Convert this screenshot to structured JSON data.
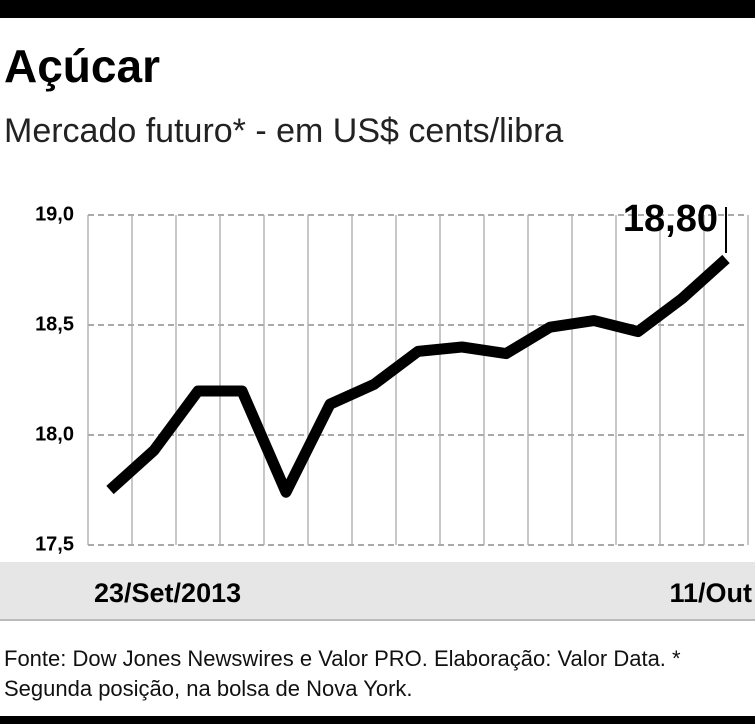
{
  "chart_data": {
    "type": "line",
    "title": "Açúcar",
    "subtitle": "Mercado futuro* - em US$ cents/libra",
    "categories": [
      "23/Set/2013",
      null,
      null,
      null,
      null,
      null,
      null,
      null,
      null,
      null,
      null,
      null,
      null,
      null,
      "11/Out"
    ],
    "series": [
      {
        "color": "#000000",
        "values": [
          17.75,
          17.93,
          18.2,
          18.2,
          17.74,
          18.14,
          18.23,
          18.38,
          18.4,
          18.37,
          18.49,
          18.52,
          18.47,
          18.62,
          18.8
        ],
        "value_labels": [
          null,
          null,
          null,
          null,
          null,
          null,
          null,
          null,
          null,
          null,
          null,
          null,
          null,
          null,
          "18,80"
        ]
      }
    ],
    "ylim": [
      17.5,
      19.0
    ],
    "yticks": [
      {
        "value": 17.5,
        "label": "17,5"
      },
      {
        "value": 18.0,
        "label": "18,0"
      },
      {
        "value": 18.5,
        "label": "18,5"
      },
      {
        "value": 19.0,
        "label": "19,0"
      }
    ],
    "grid": true,
    "source": "Fonte: Dow Jones Newswires e Valor PRO. Elaboração: Valor Data. * Segunda posição, na bolsa de Nova York."
  }
}
